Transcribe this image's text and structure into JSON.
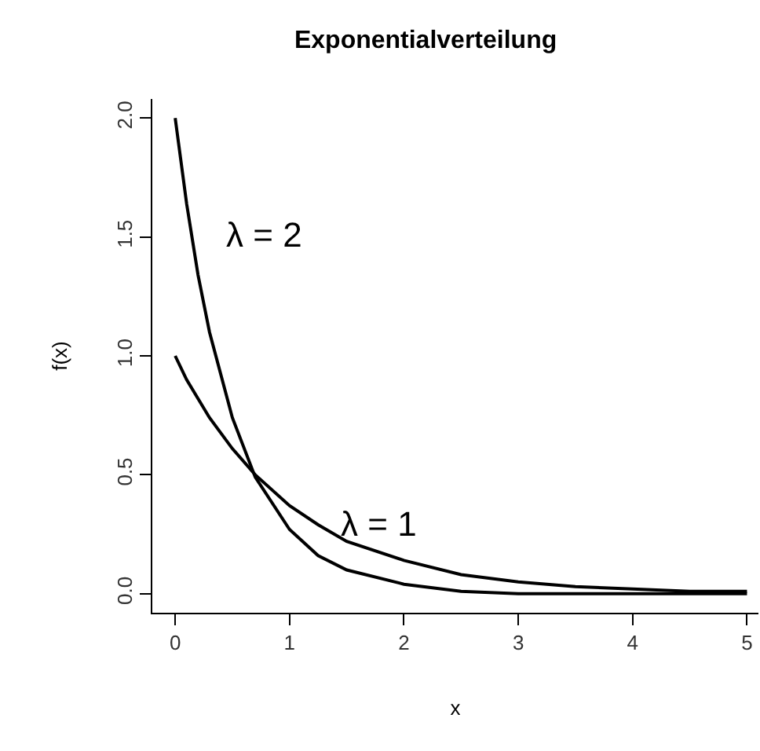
{
  "chart_data": {
    "type": "line",
    "title": "Exponentialverteilung",
    "xlabel": "x",
    "ylabel": "f(x)",
    "x": [
      0,
      0.1,
      0.2,
      0.3,
      0.5,
      0.7,
      1,
      1.25,
      1.5,
      2,
      2.5,
      3,
      3.5,
      4,
      4.5,
      5
    ],
    "series": [
      {
        "name": "λ = 2",
        "color": "#000000",
        "values": [
          2.0,
          1.64,
          1.34,
          1.1,
          0.74,
          0.49,
          0.27,
          0.16,
          0.1,
          0.04,
          0.01,
          0.0,
          0.0,
          0.0,
          0.0,
          0.0
        ]
      },
      {
        "name": "λ = 1",
        "color": "#000000",
        "values": [
          1.0,
          0.9,
          0.82,
          0.74,
          0.61,
          0.5,
          0.37,
          0.29,
          0.22,
          0.14,
          0.08,
          0.05,
          0.03,
          0.02,
          0.01,
          0.01
        ]
      }
    ],
    "xlim": [
      -0.2,
      5.1
    ],
    "ylim": [
      -0.08,
      2.08
    ],
    "xticks": [
      0,
      1,
      2,
      3,
      4,
      5
    ],
    "yticks": [
      {
        "value": 0,
        "label": "0.0"
      },
      {
        "value": 0.5,
        "label": "0.5"
      },
      {
        "value": 1,
        "label": "1.0"
      },
      {
        "value": 1.5,
        "label": "1.5"
      },
      {
        "value": 2,
        "label": "2.0"
      }
    ],
    "grid": false,
    "legend": false,
    "marker": "none",
    "line_style": "solid"
  }
}
